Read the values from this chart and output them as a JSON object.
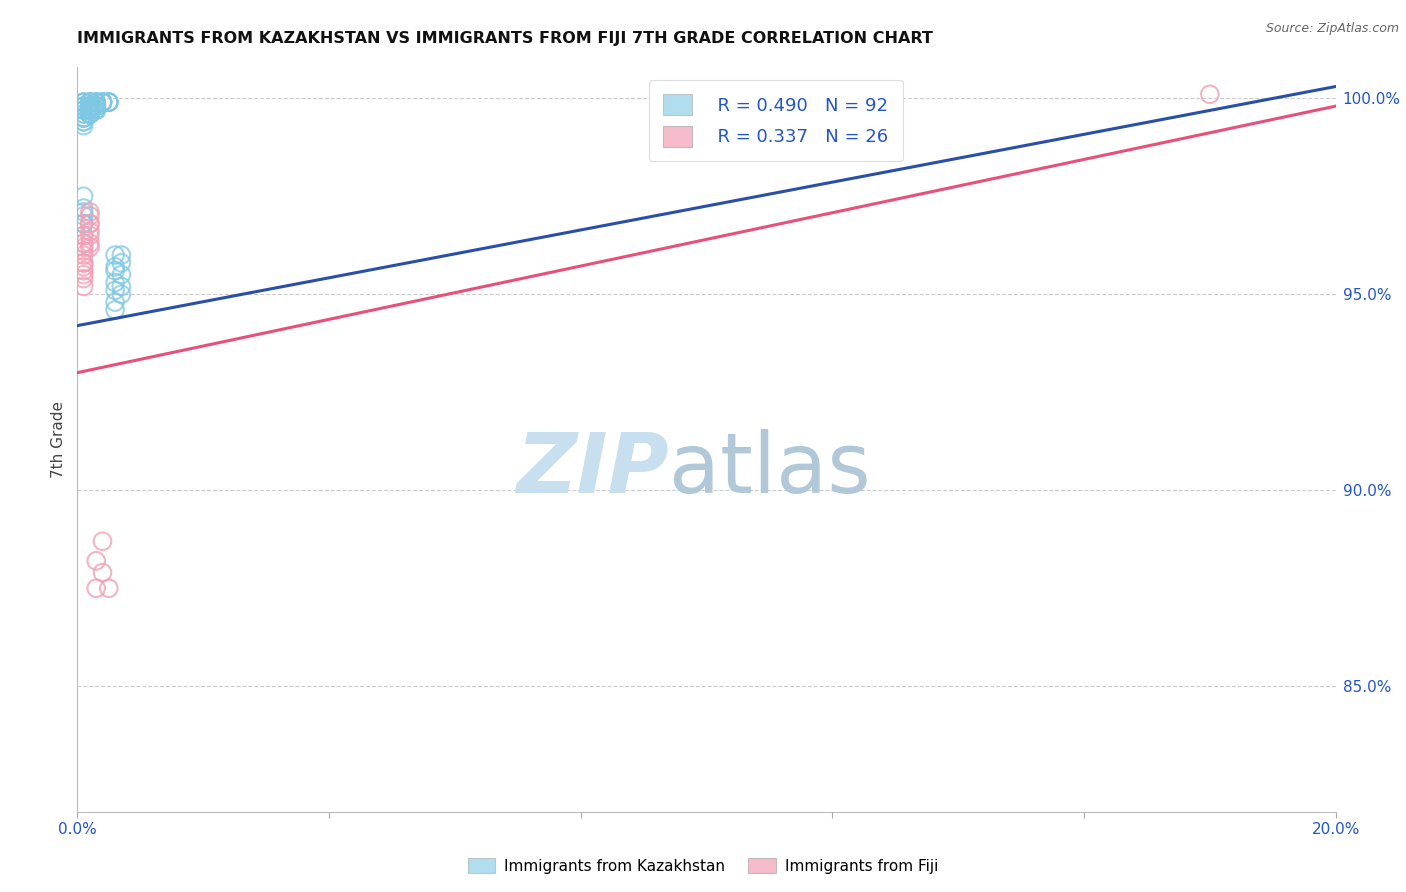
{
  "title": "IMMIGRANTS FROM KAZAKHSTAN VS IMMIGRANTS FROM FIJI 7TH GRADE CORRELATION CHART",
  "source": "Source: ZipAtlas.com",
  "ylabel": "7th Grade",
  "ylabel_ticks": [
    "100.0%",
    "95.0%",
    "90.0%",
    "85.0%"
  ],
  "ylabel_tick_vals": [
    1.0,
    0.95,
    0.9,
    0.85
  ],
  "xmin": 0.0,
  "xmax": 0.2,
  "ymin": 0.818,
  "ymax": 1.008,
  "legend_blue_r": "R = 0.490",
  "legend_blue_n": "N = 92",
  "legend_pink_r": "R = 0.337",
  "legend_pink_n": "N = 26",
  "legend_label_blue": "Immigrants from Kazakhstan",
  "legend_label_pink": "Immigrants from Fiji",
  "blue_color": "#7ec8e3",
  "pink_color": "#f4a0b5",
  "blue_line_color": "#2a4fa8",
  "pink_line_color": "#e8507a",
  "watermark_zip": "ZIP",
  "watermark_atlas": "atlas",
  "watermark_color_zip": "#c8dff0",
  "watermark_color_atlas": "#b0c8d8",
  "blue_scatter_x": [
    0.001,
    0.002,
    0.001,
    0.003,
    0.002,
    0.001,
    0.002,
    0.003,
    0.001,
    0.002,
    0.001,
    0.004,
    0.003,
    0.002,
    0.001,
    0.002,
    0.001,
    0.002,
    0.001,
    0.003,
    0.002,
    0.003,
    0.004,
    0.005,
    0.003,
    0.002,
    0.001,
    0.001,
    0.002,
    0.002,
    0.003,
    0.004,
    0.002,
    0.001,
    0.002,
    0.003,
    0.005,
    0.002,
    0.002,
    0.003,
    0.001,
    0.002,
    0.002,
    0.003,
    0.004,
    0.002,
    0.002,
    0.001,
    0.002,
    0.003,
    0.003,
    0.005,
    0.001,
    0.002,
    0.002,
    0.003,
    0.001,
    0.002,
    0.002,
    0.003,
    0.001,
    0.003,
    0.004,
    0.002,
    0.001,
    0.002,
    0.003,
    0.002,
    0.002,
    0.001,
    0.003,
    0.005,
    0.001,
    0.001,
    0.001,
    0.001,
    0.001,
    0.001,
    0.001,
    0.001,
    0.006,
    0.006,
    0.007,
    0.007,
    0.006,
    0.007,
    0.006,
    0.006,
    0.006,
    0.007,
    0.007,
    0.006
  ],
  "blue_scatter_y": [
    0.999,
    0.999,
    0.998,
    0.999,
    0.998,
    0.997,
    0.999,
    0.999,
    0.996,
    0.998,
    0.999,
    0.999,
    0.998,
    0.997,
    0.998,
    0.999,
    0.997,
    0.998,
    0.996,
    0.999,
    0.999,
    0.999,
    0.999,
    0.999,
    0.998,
    0.998,
    0.997,
    0.999,
    0.998,
    0.997,
    0.998,
    0.999,
    0.997,
    0.998,
    0.997,
    0.998,
    0.999,
    0.996,
    0.997,
    0.998,
    0.995,
    0.996,
    0.997,
    0.998,
    0.999,
    0.997,
    0.996,
    0.995,
    0.997,
    0.998,
    0.998,
    0.999,
    0.995,
    0.997,
    0.997,
    0.998,
    0.994,
    0.996,
    0.997,
    0.997,
    0.994,
    0.997,
    0.999,
    0.996,
    0.995,
    0.997,
    0.998,
    0.996,
    0.997,
    0.993,
    0.997,
    0.999,
    0.972,
    0.968,
    0.97,
    0.975,
    0.965,
    0.963,
    0.968,
    0.971,
    0.96,
    0.957,
    0.958,
    0.96,
    0.956,
    0.955,
    0.953,
    0.951,
    0.948,
    0.952,
    0.95,
    0.946
  ],
  "pink_scatter_x": [
    0.001,
    0.001,
    0.002,
    0.001,
    0.001,
    0.002,
    0.001,
    0.001,
    0.002,
    0.001,
    0.001,
    0.001,
    0.002,
    0.002,
    0.001,
    0.002,
    0.001,
    0.002,
    0.001,
    0.002,
    0.003,
    0.003,
    0.004,
    0.18,
    0.004,
    0.005
  ],
  "pink_scatter_y": [
    0.965,
    0.962,
    0.968,
    0.958,
    0.963,
    0.968,
    0.961,
    0.956,
    0.97,
    0.958,
    0.954,
    0.955,
    0.962,
    0.966,
    0.957,
    0.965,
    0.96,
    0.971,
    0.952,
    0.963,
    0.875,
    0.882,
    0.887,
    1.001,
    0.879,
    0.875
  ],
  "blue_trendline_x": [
    0.0,
    0.2
  ],
  "blue_trendline_y": [
    0.942,
    1.003
  ],
  "pink_trendline_x": [
    0.0,
    0.2
  ],
  "pink_trendline_y": [
    0.93,
    0.998
  ]
}
